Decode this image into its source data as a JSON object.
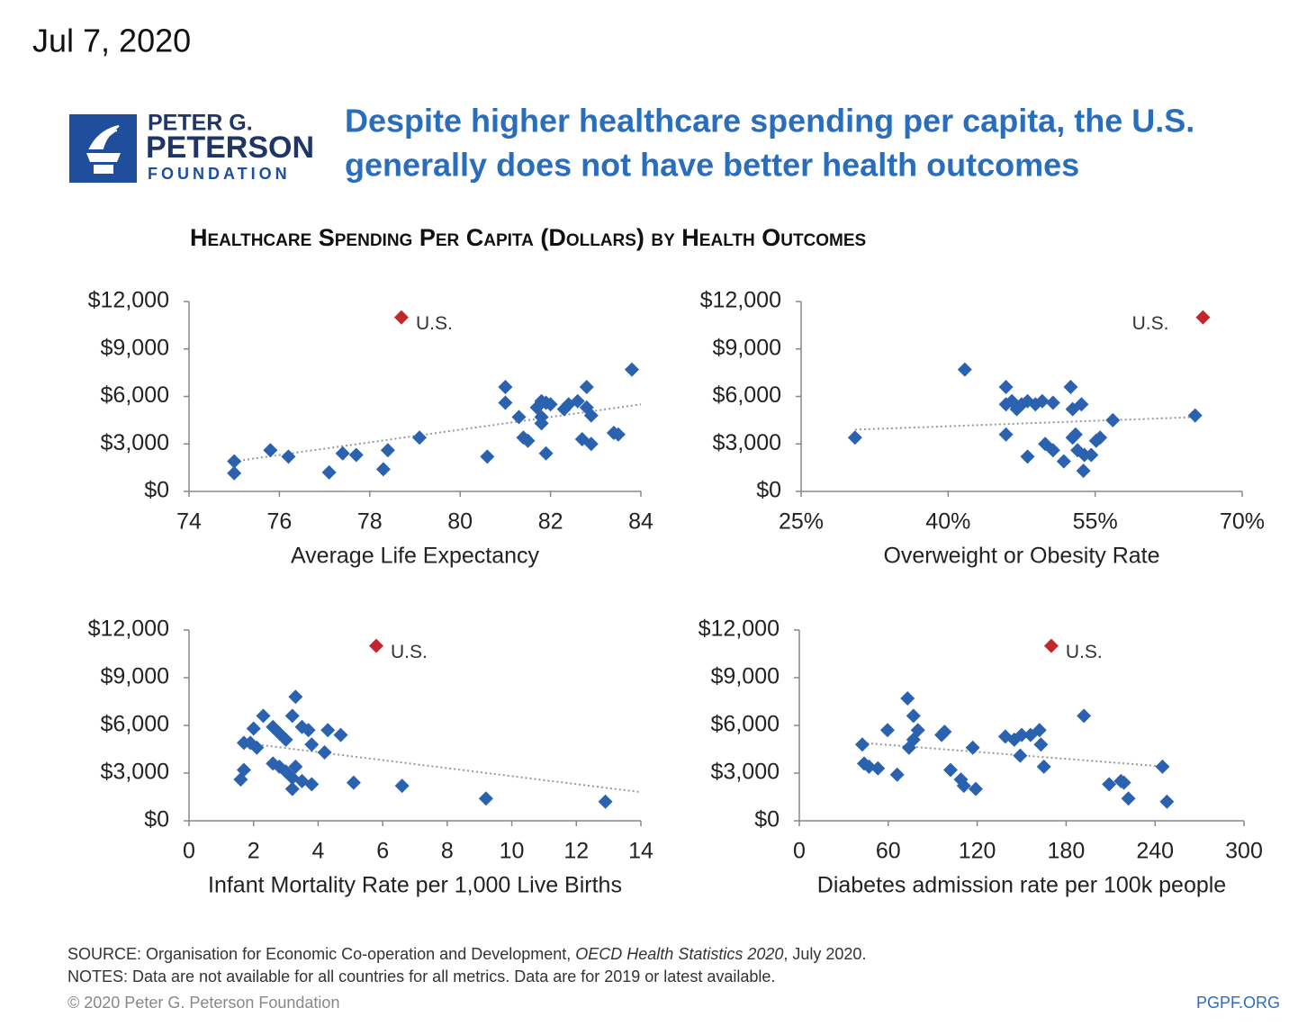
{
  "date": "Jul 7, 2020",
  "logo": {
    "line1": "PETER G.",
    "line2": "PETERSON",
    "line3": "FOUNDATION"
  },
  "headline": {
    "line1": "Despite higher healthcare spending per capita, the U.S.",
    "line2": "generally does not have better health outcomes"
  },
  "chart_title": "Healthcare Spending Per Capita (Dollars) by Health Outcomes",
  "footer": {
    "source_prefix": "SOURCE: Organisation for Economic Co-operation and Development, ",
    "source_title": "OECD Health Statistics 2020",
    "source_suffix": ", July 2020.",
    "notes": "NOTES: Data are not available for all countries for all metrics. Data are for 2019 or latest available.",
    "copyright": "© 2020 Peter G. Peterson Foundation",
    "url": "PGPF.ORG"
  },
  "chart_data": [
    {
      "type": "scatter",
      "x_label": "Average Life Expectancy",
      "xlim": [
        74,
        84
      ],
      "xticks": [
        74,
        76,
        78,
        80,
        82,
        84
      ],
      "ylim": [
        0,
        12000
      ],
      "yticks": [
        {
          "value": 0,
          "label": "$0"
        },
        {
          "value": 3000,
          "label": "$3,000"
        },
        {
          "value": 6000,
          "label": "$6,000"
        },
        {
          "value": 9000,
          "label": "$9,000"
        },
        {
          "value": 12000,
          "label": "$12,000"
        }
      ],
      "series": [
        {
          "color": "#2b62b0",
          "x": [
            75.0,
            75.0,
            75.8,
            76.2,
            77.1,
            77.4,
            77.7,
            78.3,
            78.4,
            79.1,
            80.6,
            81.0,
            81.0,
            81.3,
            81.4,
            81.5,
            81.7,
            81.8,
            81.8,
            81.8,
            81.9,
            81.9,
            82.0,
            82.3,
            82.4,
            82.6,
            82.8,
            82.8,
            82.7,
            82.9,
            82.9,
            83.4,
            83.5,
            83.8
          ],
          "values": [
            1900,
            1150,
            2600,
            2200,
            1200,
            2400,
            2300,
            1400,
            2600,
            3400,
            2200,
            6600,
            5600,
            4700,
            3400,
            3200,
            5300,
            5700,
            4700,
            4300,
            2400,
            5600,
            5500,
            5200,
            5500,
            5700,
            6600,
            5300,
            3300,
            4800,
            3000,
            3700,
            3600,
            7700
          ]
        }
      ],
      "highlight": {
        "label": "U.S.",
        "x": 78.7,
        "value": 11000,
        "color": "#c1272d"
      },
      "trend": {
        "x": [
          75.0,
          84.0
        ],
        "values": [
          1900,
          5500
        ]
      }
    },
    {
      "type": "scatter",
      "x_label": "Overweight or Obesity Rate",
      "xlim": [
        25,
        70
      ],
      "xticks": [
        {
          "value": 25,
          "label": "25%"
        },
        {
          "value": 40,
          "label": "40%"
        },
        {
          "value": 55,
          "label": "55%"
        },
        {
          "value": 70,
          "label": "70%"
        }
      ],
      "ylim": [
        0,
        12000
      ],
      "yticks": [
        {
          "value": 0,
          "label": "$0"
        },
        {
          "value": 3000,
          "label": "$3,000"
        },
        {
          "value": 6000,
          "label": "$6,000"
        },
        {
          "value": 9000,
          "label": "$9,000"
        },
        {
          "value": 12000,
          "label": "$12,000"
        }
      ],
      "series": [
        {
          "color": "#2b62b0",
          "x": [
            30.5,
            41.7,
            45.9,
            45.9,
            46.5,
            47.0,
            47.5,
            48.1,
            48.9,
            49.6,
            50.7,
            52.5,
            52.7,
            53.6,
            45.9,
            48.1,
            49.9,
            50.7,
            51.8,
            52.7,
            53.0,
            53.2,
            53.9,
            53.8,
            54.6,
            55.1,
            55.5,
            56.8,
            65.2
          ],
          "values": [
            3400,
            7700,
            6600,
            5500,
            5700,
            5200,
            5500,
            5700,
            5500,
            5700,
            5600,
            6600,
            5200,
            5500,
            3600,
            2200,
            3000,
            2600,
            1900,
            3400,
            3600,
            2600,
            2300,
            1300,
            2300,
            3200,
            3400,
            4500,
            4800
          ]
        }
      ],
      "highlight": {
        "label": "U.S.",
        "x": 66.0,
        "value": 11000,
        "color": "#c1272d"
      },
      "trend": {
        "x": [
          30.5,
          65.4
        ],
        "values": [
          3900,
          4700
        ]
      }
    },
    {
      "type": "scatter",
      "x_label": "Infant Mortality Rate per 1,000 Live Births",
      "xlim": [
        0,
        14
      ],
      "xticks": [
        0,
        2,
        4,
        6,
        8,
        10,
        12,
        14
      ],
      "ylim": [
        0,
        12000
      ],
      "yticks": [
        {
          "value": 0,
          "label": "$0"
        },
        {
          "value": 3000,
          "label": "$3,000"
        },
        {
          "value": 6000,
          "label": "$6,000"
        },
        {
          "value": 9000,
          "label": "$9,000"
        },
        {
          "value": 12000,
          "label": "$12,000"
        }
      ],
      "series": [
        {
          "color": "#2b62b0",
          "x": [
            1.6,
            1.7,
            1.7,
            1.9,
            2.0,
            2.1,
            2.3,
            2.6,
            2.8,
            3.0,
            3.2,
            3.3,
            3.5,
            3.7,
            3.8,
            4.2,
            4.3,
            4.7,
            2.6,
            2.8,
            3.0,
            3.2,
            3.2,
            3.3,
            3.5,
            3.8,
            5.1,
            6.6,
            9.2,
            12.9
          ],
          "values": [
            2600,
            3200,
            4900,
            4900,
            5800,
            4600,
            6600,
            5900,
            5500,
            5100,
            6600,
            7800,
            5900,
            5700,
            4800,
            4300,
            5700,
            5400,
            3600,
            3400,
            3100,
            2700,
            2000,
            3400,
            2500,
            2300,
            2400,
            2200,
            1400,
            1200
          ]
        }
      ],
      "highlight": {
        "label": "U.S.",
        "x": 5.8,
        "value": 11000,
        "color": "#c1272d"
      },
      "trend": {
        "x": [
          1.7,
          14.0
        ],
        "values": [
          4900,
          1800
        ]
      }
    },
    {
      "type": "scatter",
      "x_label": "Diabetes admission rate per 100k people",
      "xlim": [
        0,
        300
      ],
      "xticks": [
        0,
        60,
        120,
        180,
        240,
        300
      ],
      "ylim": [
        0,
        12000
      ],
      "yticks": [
        {
          "value": 0,
          "label": "$0"
        },
        {
          "value": 3000,
          "label": "$3,000"
        },
        {
          "value": 6000,
          "label": "$6,000"
        },
        {
          "value": 9000,
          "label": "$9,000"
        },
        {
          "value": 12000,
          "label": "$12,000"
        }
      ],
      "series": [
        {
          "color": "#2b62b0",
          "x": [
            42.5,
            43.7,
            47,
            53,
            59.5,
            66,
            73,
            77,
            74,
            77,
            80,
            96,
            98,
            102,
            109,
            111,
            117,
            119,
            139,
            145,
            149,
            150,
            156,
            162,
            163,
            165,
            192,
            209,
            217,
            219,
            222,
            245,
            248
          ],
          "values": [
            4800,
            3600,
            3400,
            3300,
            5700,
            2900,
            7700,
            6600,
            4600,
            5100,
            5700,
            5400,
            5600,
            3200,
            2600,
            2200,
            4600,
            2000,
            5300,
            5100,
            4100,
            5400,
            5400,
            5700,
            4800,
            3400,
            6600,
            2300,
            2500,
            2400,
            1400,
            3400,
            1200
          ]
        }
      ],
      "highlight": {
        "label": "U.S.",
        "x": 170,
        "value": 11000,
        "color": "#c1272d"
      },
      "trend": {
        "x": [
          42.5,
          248
        ],
        "values": [
          4900,
          3400
        ]
      }
    }
  ]
}
